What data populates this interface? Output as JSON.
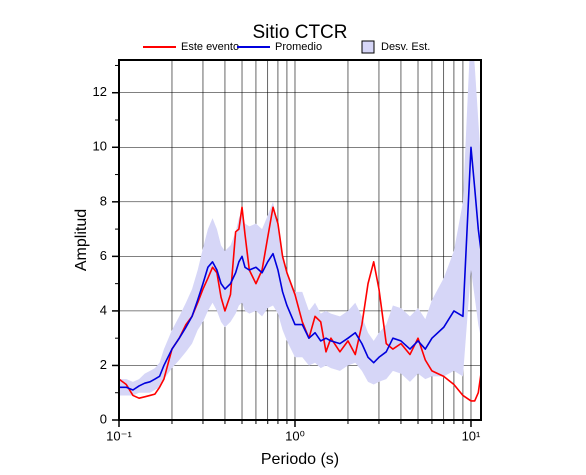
{
  "chart_data": {
    "type": "line",
    "title": "Sitio CTCR",
    "xlabel": "Periodo (s)",
    "ylabel": "Amplitud",
    "xscale": "log",
    "xlim": [
      0.1,
      11.4
    ],
    "ylim": [
      0,
      13.2
    ],
    "xticks": [
      {
        "value": 0.1,
        "label": "10⁻¹"
      },
      {
        "value": 1,
        "label": "10⁰"
      },
      {
        "value": 10,
        "label": "10¹"
      }
    ],
    "xminorticks": [
      0.2,
      0.3,
      0.4,
      0.5,
      0.6,
      0.7,
      0.8,
      0.9,
      2,
      3,
      4,
      5,
      6,
      7,
      8,
      9
    ],
    "yticks": [
      0,
      2,
      4,
      6,
      8,
      10,
      12
    ],
    "yminorticks": [
      1,
      3,
      5,
      7,
      9,
      11,
      13
    ],
    "grid": true,
    "legend": "top",
    "x": [
      0.1,
      0.11,
      0.12,
      0.13,
      0.14,
      0.15,
      0.16,
      0.17,
      0.18,
      0.2,
      0.22,
      0.24,
      0.26,
      0.28,
      0.3,
      0.32,
      0.34,
      0.36,
      0.38,
      0.4,
      0.43,
      0.46,
      0.48,
      0.5,
      0.52,
      0.55,
      0.6,
      0.65,
      0.7,
      0.75,
      0.8,
      0.85,
      0.9,
      1.0,
      1.1,
      1.2,
      1.3,
      1.4,
      1.5,
      1.6,
      1.8,
      2.0,
      2.2,
      2.4,
      2.6,
      2.8,
      3.0,
      3.3,
      3.6,
      4.0,
      4.5,
      5,
      5.5,
      6,
      7,
      8,
      9,
      10,
      10.5,
      11,
      11.4
    ],
    "series": [
      {
        "name": "Este evento",
        "color": "#ff0000",
        "values": [
          1.5,
          1.3,
          0.9,
          0.8,
          0.85,
          0.9,
          0.95,
          1.2,
          1.5,
          2.6,
          3.0,
          3.5,
          3.8,
          4.3,
          4.8,
          5.2,
          5.6,
          5.4,
          4.5,
          4.0,
          4.6,
          6.9,
          7.0,
          7.8,
          6.8,
          5.5,
          5.0,
          5.5,
          6.7,
          7.8,
          7.2,
          6.0,
          5.4,
          4.6,
          3.6,
          3.0,
          3.8,
          3.6,
          2.5,
          3.0,
          2.5,
          2.9,
          2.4,
          3.5,
          5.0,
          5.8,
          4.8,
          2.8,
          2.6,
          2.8,
          2.4,
          3.0,
          2.2,
          1.8,
          1.6,
          1.3,
          0.9,
          0.7,
          0.7,
          1.0,
          1.7
        ]
      },
      {
        "name": "Promedio",
        "color": "#0000dd",
        "values": [
          1.2,
          1.2,
          1.1,
          1.25,
          1.35,
          1.4,
          1.5,
          1.6,
          2.0,
          2.6,
          3.0,
          3.4,
          3.8,
          4.4,
          5.0,
          5.6,
          5.8,
          5.5,
          5.0,
          4.8,
          5.0,
          5.4,
          5.8,
          6.0,
          5.6,
          5.5,
          5.6,
          5.4,
          5.8,
          6.1,
          5.5,
          4.7,
          4.2,
          3.5,
          3.5,
          3.0,
          3.2,
          2.9,
          3.0,
          2.9,
          2.8,
          3.0,
          3.2,
          2.8,
          2.3,
          2.1,
          2.3,
          2.5,
          3.0,
          2.9,
          2.6,
          2.9,
          2.6,
          3.0,
          3.4,
          4.0,
          3.8,
          10.0,
          8.5,
          7.0,
          6.2
        ]
      },
      {
        "name": "Desv. Est.",
        "color": "#d6d6f7",
        "band": true,
        "lower": [
          0.9,
          0.9,
          0.9,
          1.0,
          1.0,
          1.0,
          1.1,
          1.2,
          1.5,
          1.9,
          2.2,
          2.5,
          2.8,
          3.3,
          3.6,
          4.0,
          4.3,
          4.0,
          3.6,
          3.4,
          3.6,
          3.9,
          4.2,
          4.3,
          4.0,
          3.9,
          4.0,
          3.8,
          4.1,
          4.2,
          3.9,
          3.3,
          2.9,
          2.3,
          2.3,
          2.0,
          2.1,
          1.9,
          2.0,
          1.9,
          1.8,
          2.0,
          2.1,
          1.8,
          1.4,
          1.3,
          1.4,
          1.5,
          1.8,
          1.7,
          1.4,
          1.7,
          1.5,
          1.6,
          1.6,
          1.8,
          1.6,
          5.5,
          4.5,
          3.5,
          3.0
        ],
        "upper": [
          1.5,
          1.5,
          1.4,
          1.5,
          1.7,
          1.8,
          1.9,
          2.1,
          2.6,
          3.3,
          3.8,
          4.3,
          4.8,
          5.5,
          6.3,
          7.0,
          7.4,
          7.0,
          6.4,
          6.2,
          6.4,
          6.9,
          7.4,
          7.7,
          7.2,
          7.1,
          7.2,
          7.0,
          7.5,
          8.0,
          7.1,
          6.1,
          5.5,
          4.7,
          4.7,
          4.0,
          4.3,
          3.9,
          4.0,
          3.9,
          3.8,
          4.0,
          4.3,
          3.8,
          3.2,
          2.9,
          3.2,
          3.5,
          4.2,
          4.1,
          3.8,
          4.1,
          3.7,
          4.4,
          5.2,
          6.2,
          8.0,
          14.5,
          13.0,
          11.0,
          9.5
        ]
      }
    ]
  }
}
